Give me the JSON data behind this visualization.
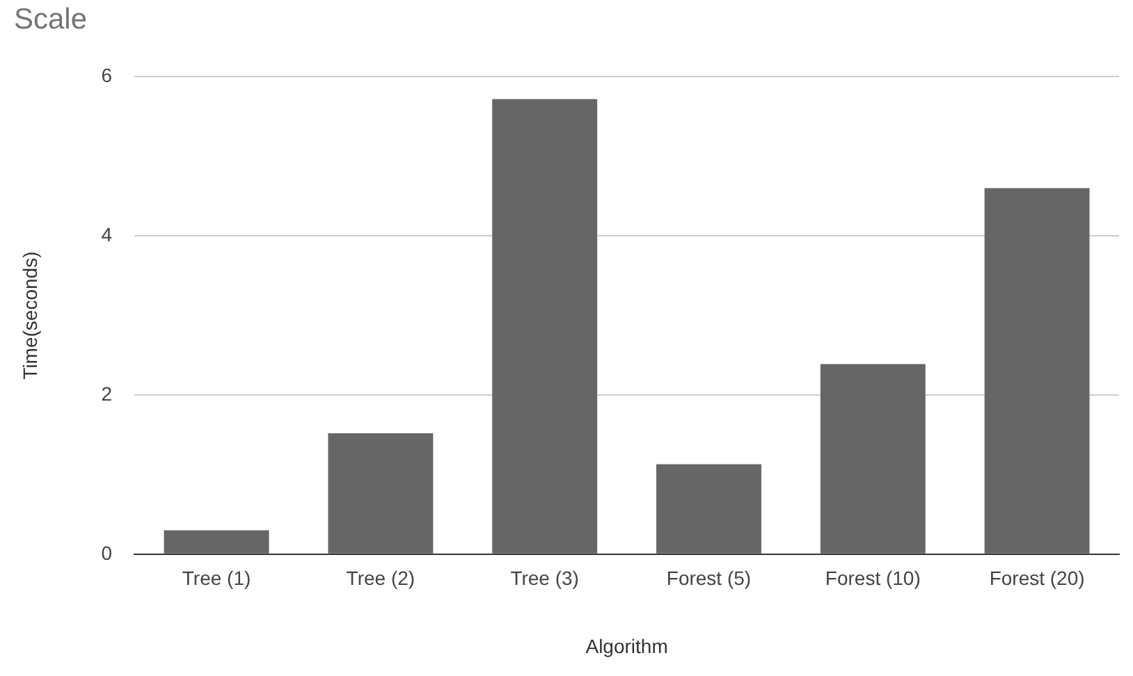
{
  "chart_data": {
    "type": "bar",
    "title": "Scale",
    "xlabel": "Algorithm",
    "ylabel": "Time(seconds)",
    "categories": [
      "Tree (1)",
      "Tree (2)",
      "Tree (3)",
      "Forest (5)",
      "Forest (10)",
      "Forest (20)"
    ],
    "values": [
      0.3,
      1.52,
      5.72,
      1.13,
      2.39,
      4.6
    ],
    "color": "#666666",
    "ylim": [
      0,
      6
    ],
    "yticks": [
      0,
      2,
      4,
      6
    ],
    "grid": "y",
    "legend": false
  }
}
